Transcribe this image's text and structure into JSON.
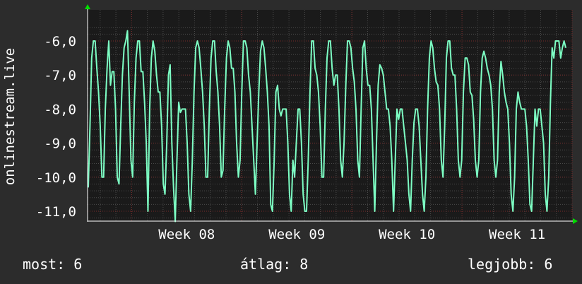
{
  "colors": {
    "background": "#2c2c2c",
    "plot_background": "#1a1a1a",
    "grid_minor": "#4a4a4a",
    "grid_major": "#7a2a2a",
    "line": "#7dffc4",
    "axis_arrow": "#00dd00",
    "text": "#ffffff"
  },
  "footer": {
    "current": "most: 6",
    "average": "átlag: 8",
    "best": "legjobb: 6"
  },
  "chart_data": {
    "type": "line",
    "title": "",
    "xlabel": "",
    "ylabel": "onlinestream.live",
    "y_axis_inverted": true,
    "ylim": [
      -5.5,
      -11.4
    ],
    "y_ticks": [
      -6,
      -7,
      -8,
      -9,
      -10,
      -11
    ],
    "y_tick_labels": [
      "-6,0",
      "-7,0",
      "-8,0",
      "-9,0",
      "-10,0",
      "-11,0"
    ],
    "x_range_weeks": [
      7.6,
      12.0
    ],
    "x_ticks": [
      8,
      9,
      10,
      11
    ],
    "x_tick_labels": [
      "Week 08",
      "Week 09",
      "Week 10",
      "Week 11"
    ],
    "grid": true,
    "legend": "none",
    "series": [
      {
        "values": [
          -10.3,
          -8.5,
          -6.5,
          -6.0,
          -6.0,
          -6.8,
          -7.5,
          -8.5,
          -10.0,
          -10.0,
          -8.0,
          -6.8,
          -6.0,
          -7.3,
          -6.9,
          -6.9,
          -8.0,
          -10.0,
          -10.2,
          -8.5,
          -7.0,
          -6.2,
          -6.0,
          -5.7,
          -7.5,
          -9.5,
          -10.0,
          -7.8,
          -6.5,
          -6.0,
          -6.0,
          -6.9,
          -6.9,
          -7.8,
          -9.0,
          -11.0,
          -8.0,
          -6.5,
          -6.0,
          -6.3,
          -7.0,
          -7.5,
          -7.5,
          -8.5,
          -10.2,
          -10.5,
          -9.0,
          -7.0,
          -6.7,
          -9.0,
          -10.3,
          -11.3,
          -9.5,
          -7.8,
          -8.1,
          -8.0,
          -8.0,
          -8.0,
          -9.0,
          -10.5,
          -11.0,
          -9.5,
          -7.5,
          -6.2,
          -6.0,
          -6.2,
          -6.8,
          -7.5,
          -8.5,
          -10.0,
          -10.0,
          -8.0,
          -6.5,
          -6.0,
          -6.0,
          -6.9,
          -7.5,
          -8.5,
          -10.0,
          -9.8,
          -8.0,
          -6.5,
          -6.0,
          -6.2,
          -6.8,
          -6.8,
          -7.5,
          -9.0,
          -10.0,
          -9.5,
          -7.5,
          -6.0,
          -6.0,
          -6.2,
          -7.0,
          -7.5,
          -8.5,
          -9.5,
          -10.5,
          -9.0,
          -7.5,
          -6.3,
          -6.0,
          -6.2,
          -6.8,
          -7.5,
          -8.5,
          -10.8,
          -11.0,
          -9.5,
          -7.5,
          -7.3,
          -8.0,
          -8.2,
          -8.0,
          -8.0,
          -8.0,
          -9.0,
          -10.5,
          -11.0,
          -9.5,
          -10.0,
          -9.0,
          -8.0,
          -8.0,
          -9.0,
          -10.5,
          -11.0,
          -11.0,
          -9.5,
          -7.5,
          -6.0,
          -6.0,
          -6.8,
          -7.0,
          -7.5,
          -8.5,
          -10.0,
          -10.0,
          -8.0,
          -6.5,
          -6.0,
          -6.0,
          -6.8,
          -7.3,
          -7.0,
          -7.0,
          -8.0,
          -9.5,
          -10.0,
          -9.0,
          -7.3,
          -6.0,
          -6.0,
          -6.2,
          -6.8,
          -7.2,
          -8.0,
          -9.5,
          -10.0,
          -8.0,
          -6.2,
          -6.0,
          -6.8,
          -7.3,
          -7.3,
          -8.0,
          -9.5,
          -11.0,
          -9.0,
          -7.3,
          -6.7,
          -6.8,
          -7.0,
          -7.5,
          -8.0,
          -8.0,
          -8.5,
          -9.5,
          -11.0,
          -9.5,
          -8.0,
          -8.3,
          -8.0,
          -8.0,
          -8.5,
          -9.0,
          -9.5,
          -10.5,
          -11.0,
          -9.5,
          -8.4,
          -8.0,
          -8.0,
          -8.5,
          -9.5,
          -10.5,
          -11.0,
          -10.0,
          -8.0,
          -6.5,
          -6.0,
          -6.2,
          -6.8,
          -7.2,
          -7.3,
          -8.0,
          -9.5,
          -10.0,
          -8.5,
          -6.5,
          -6.0,
          -6.0,
          -6.8,
          -7.0,
          -7.0,
          -8.0,
          -9.5,
          -10.0,
          -9.5,
          -7.5,
          -6.5,
          -6.5,
          -6.7,
          -7.5,
          -7.6,
          -8.3,
          -9.5,
          -10.0,
          -9.5,
          -7.5,
          -6.5,
          -6.3,
          -6.5,
          -6.8,
          -7.0,
          -7.3,
          -8.0,
          -9.5,
          -10.0,
          -9.5,
          -7.5,
          -6.6,
          -7.0,
          -7.5,
          -7.8,
          -8.0,
          -9.0,
          -10.5,
          -11.0,
          -10.0,
          -8.0,
          -7.5,
          -7.8,
          -8.0,
          -8.0,
          -8.0,
          -8.5,
          -9.5,
          -10.8,
          -11.0,
          -9.5,
          -8.0,
          -8.5,
          -8.0,
          -8.0,
          -8.5,
          -9.0,
          -10.5,
          -11.0,
          -10.0,
          -7.8,
          -6.2,
          -6.5,
          -6.0,
          -6.0,
          -6.0,
          -6.5,
          -6.2,
          -6.0,
          -6.2
        ]
      }
    ]
  }
}
